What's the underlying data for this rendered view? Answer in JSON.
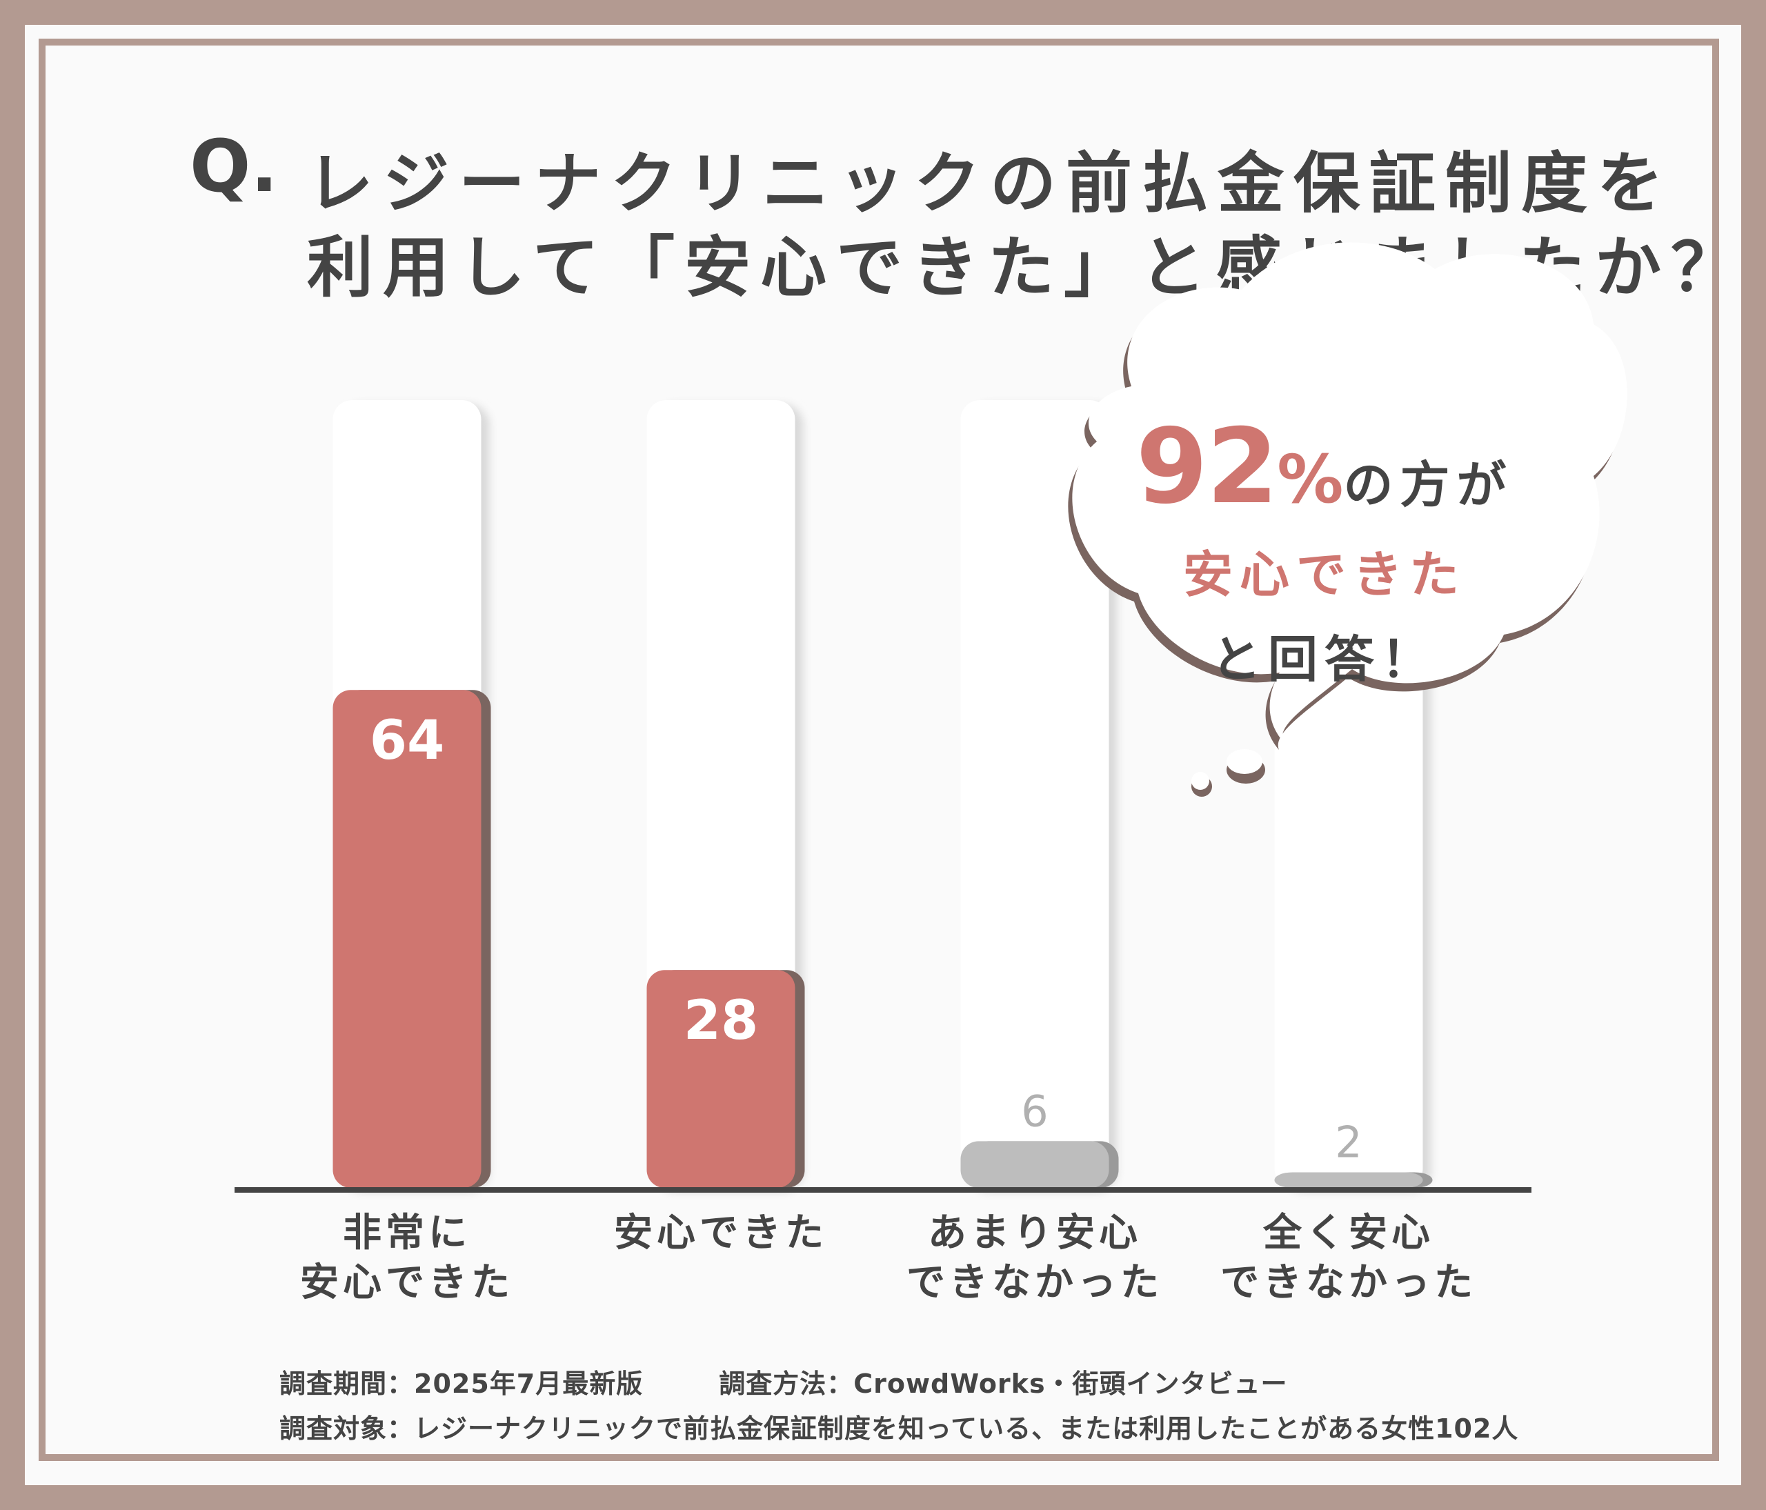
{
  "title": {
    "q_mark": "Q.",
    "line1": "レジーナクリニックの前払金保証制度を",
    "line2": "利用して「安心できた」と感じましたか？"
  },
  "chart_data": {
    "type": "bar",
    "categories": [
      [
        "非常に",
        "安心できた"
      ],
      [
        "安心できた"
      ],
      [
        "あまり安心",
        "できなかった"
      ],
      [
        "全く安心",
        "できなかった"
      ]
    ],
    "values": [
      64,
      28,
      6,
      2
    ],
    "value_labels": [
      "64",
      "28",
      "6",
      "2"
    ],
    "colors": [
      "#cf7670",
      "#cf7670",
      "#bdbdbd",
      "#bdbdbd"
    ],
    "ylim": [
      0,
      100
    ],
    "grid": false,
    "legend": "none",
    "title": "",
    "xlabel": "",
    "ylabel": ""
  },
  "callout": {
    "percent": "92",
    "percent_sign": "%",
    "suffix": "の方が",
    "line2": "安心できた",
    "line3": "と回答！"
  },
  "footnotes": {
    "period": "調査期間：2025年7月最新版",
    "method": "調査方法：CrowdWorks・街頭インタビュー",
    "target": "調査対象：レジーナクリニックで前払金保証制度を知っている、または利用したことがある女性102人"
  },
  "colors": {
    "accent": "#cf7670",
    "muted": "#bdbdbd",
    "frame": "#b39a91",
    "text": "#444444"
  }
}
